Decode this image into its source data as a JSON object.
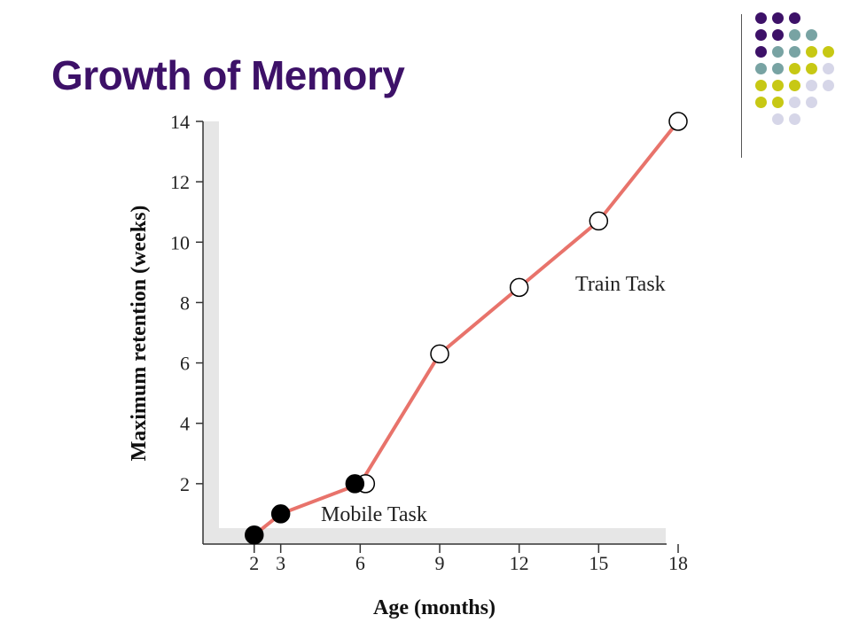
{
  "slide": {
    "title": "Growth of Memory",
    "title_color": "#3d1168"
  },
  "decoration": {
    "dot_colors": {
      "purple": "#3d1168",
      "teal": "#78a3a3",
      "olive": "#c7c814",
      "lavender": "#d6d6e8"
    },
    "dot_rows": [
      [
        "purple",
        "purple",
        "purple"
      ],
      [
        "purple",
        "purple",
        "teal",
        "teal"
      ],
      [
        "purple",
        "teal",
        "teal",
        "olive",
        "olive"
      ],
      [
        "teal",
        "teal",
        "olive",
        "olive",
        "lavender"
      ],
      [
        "olive",
        "olive",
        "olive",
        "lavender",
        "lavender"
      ],
      [
        "olive",
        "olive",
        "lavender",
        "lavender"
      ],
      [
        "lavender",
        "lavender"
      ]
    ]
  },
  "chart_data": {
    "type": "line",
    "title": "",
    "xlabel": "Age (months)",
    "ylabel": "Maximum retention (weeks)",
    "xlim": [
      0,
      18
    ],
    "ylim": [
      0,
      14
    ],
    "x_ticks": [
      2,
      3,
      6,
      9,
      12,
      15,
      18
    ],
    "y_ticks": [
      2,
      4,
      6,
      8,
      10,
      12,
      14
    ],
    "line_color": "#e8736b",
    "grid": false,
    "series": [
      {
        "name": "Mobile Task",
        "marker": "filled",
        "x": [
          2,
          3,
          6
        ],
        "y": [
          0.3,
          1.0,
          2.0
        ]
      },
      {
        "name": "Train Task",
        "marker": "open",
        "x": [
          6,
          9,
          12,
          15,
          18
        ],
        "y": [
          2.0,
          6.3,
          8.5,
          10.7,
          14.0
        ]
      }
    ]
  }
}
